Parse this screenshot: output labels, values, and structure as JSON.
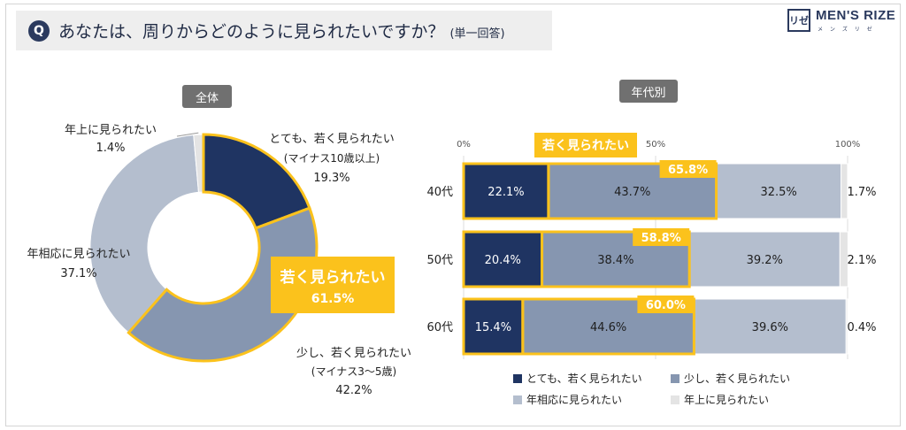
{
  "header": {
    "q_icon": "Q",
    "question": "あなたは、周りからどのように見られたいですか？",
    "note": "(単一回答)"
  },
  "logo": {
    "mark": "リゼ",
    "name": "MEN'S RIZE",
    "sub": "メ ン ズ リ ゼ"
  },
  "colors": {
    "dark": "#1f3462",
    "mid": "#8696b0",
    "light": "#b4bece",
    "pale": "#e4e4e4",
    "highlight": "#fbc21c"
  },
  "chart_data": [
    {
      "type": "pie",
      "title": "全体",
      "categories": [
        "とても、若く見られたい",
        "少し、若く見られたい",
        "年相応に見られたい",
        "年上に見られたい"
      ],
      "category_notes": [
        "(マイナス10歳以上)",
        "(マイナス3〜5歳)",
        "",
        ""
      ],
      "values": [
        19.3,
        42.2,
        37.1,
        1.4
      ],
      "value_labels": [
        "19.3%",
        "42.2%",
        "37.1%",
        "1.4%"
      ],
      "highlight": {
        "label": "若く見られたい",
        "value": 61.5,
        "value_label": "61.5%"
      }
    },
    {
      "type": "bar",
      "orientation": "horizontal",
      "stacked": true,
      "title": "年代別",
      "categories": [
        "40代",
        "50代",
        "60代"
      ],
      "xlim": [
        0,
        100
      ],
      "ticks": [
        "0%",
        "50%",
        "100%"
      ],
      "series": [
        {
          "name": "とても、若く見られたい",
          "values": [
            22.1,
            20.4,
            15.4
          ],
          "labels": [
            "22.1%",
            "20.4%",
            "15.4%"
          ]
        },
        {
          "name": "少し、若く見られたい",
          "values": [
            43.7,
            38.4,
            44.6
          ],
          "labels": [
            "43.7%",
            "38.4%",
            "44.6%"
          ]
        },
        {
          "name": "年相応に見られたい",
          "values": [
            32.5,
            39.2,
            39.6
          ],
          "labels": [
            "32.5%",
            "39.2%",
            "39.6%"
          ]
        },
        {
          "name": "年上に見られたい",
          "values": [
            1.7,
            2.1,
            0.4
          ],
          "labels": [
            "1.7%",
            "2.1%",
            "0.4%"
          ]
        }
      ],
      "highlight": {
        "label": "若く見られたい",
        "values": [
          65.8,
          58.8,
          60.0
        ],
        "labels": [
          "65.8%",
          "58.8%",
          "60.0%"
        ]
      },
      "legend": "bottom"
    }
  ]
}
